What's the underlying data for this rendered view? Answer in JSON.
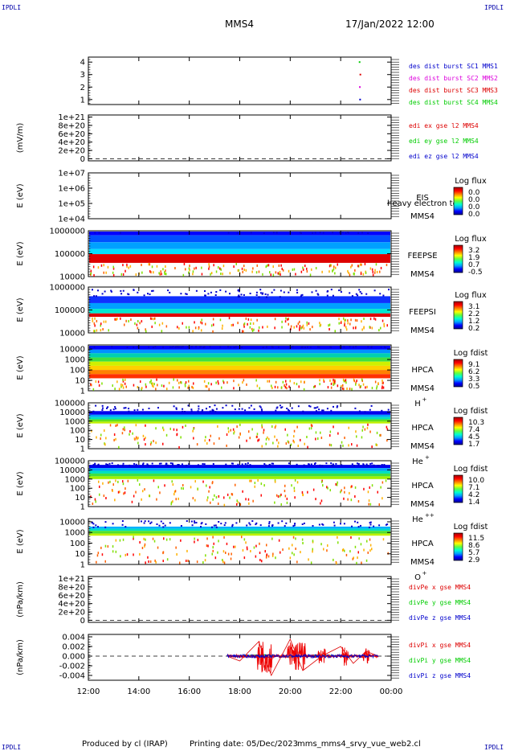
{
  "corner_label": "IPDLI",
  "header": {
    "spacecraft": "MMS4",
    "datetime": "17/Jan/2022 12:00"
  },
  "footer": {
    "produced_by": "Produced by cl (IRAP)",
    "printing_date": "Printing date: 05/Dec/2023",
    "script": "mms_mms4_srvy_vue_web2.cl"
  },
  "time_axis": {
    "tick_labels": [
      "12:00",
      "14:00",
      "16:00",
      "18:00",
      "20:00",
      "22:00",
      "00:00"
    ]
  },
  "colors": {
    "blue": "#0000cc",
    "magenta": "#dd00dd",
    "red": "#dd0000",
    "green": "#00cc00"
  },
  "panels": [
    {
      "id": "burst",
      "type": "line",
      "ylabel": "",
      "yticks": [
        "1",
        "2",
        "3",
        "4"
      ],
      "ylim": [
        0.6,
        4.4
      ],
      "legend": [
        {
          "text": "des dist burst SC1 MMS1",
          "color": "#0000cc"
        },
        {
          "text": "des dist burst SC2 MMS2",
          "color": "#dd00dd"
        },
        {
          "text": "des dist burst SC3 MMS3",
          "color": "#dd0000"
        },
        {
          "text": "des dist burst SC4 MMS4",
          "color": "#00cc00"
        }
      ],
      "points": [
        {
          "t": 22.75,
          "y": 4,
          "color": "#00cc00"
        },
        {
          "t": 22.78,
          "y": 3,
          "color": "#dd0000"
        },
        {
          "t": 22.76,
          "y": 2,
          "color": "#dd00dd"
        },
        {
          "t": 22.77,
          "y": 1,
          "color": "#0000cc"
        }
      ]
    },
    {
      "id": "edi",
      "type": "line",
      "ylabel": "(mV/m)",
      "yticks": [
        "0",
        "2e+20",
        "4e+20",
        "6e+20",
        "8e+20",
        "1e+21"
      ],
      "ylim": [
        -0.05,
        1.05
      ],
      "zero_line": true,
      "legend": [
        {
          "text": "edi ex gse l2 MMS4",
          "color": "#dd0000"
        },
        {
          "text": "edi ey gse l2 MMS4",
          "color": "#00cc00"
        },
        {
          "text": "edi ez gse l2 MMS4",
          "color": "#0000cc"
        }
      ]
    },
    {
      "id": "eis",
      "type": "spectrogram",
      "ylabel": "E (eV)",
      "yticks": [
        "1e+04",
        "1e+05",
        "1e+06",
        "1e+07"
      ],
      "ylog": [
        4,
        7
      ],
      "instrument": "EIS",
      "spacecraft": "MMS4",
      "overlay_text": "heavy electron tof",
      "colorbar_title": "Log flux",
      "colorbar_values": [
        "0.0",
        "0.0",
        "0.0",
        "0.0"
      ],
      "bands": []
    },
    {
      "id": "feepse",
      "type": "spectrogram",
      "ylabel": "E (eV)",
      "yticks": [
        "10000",
        "100000",
        "1000000"
      ],
      "ylog": [
        4,
        6
      ],
      "instrument": "FEEPSE",
      "spacecraft": "MMS4",
      "colorbar_title": "Log flux",
      "colorbar_values": [
        "3.2",
        "1.9",
        "0.7",
        "-0.5"
      ],
      "bands": [
        {
          "e_top": 6.03,
          "e_bot": 5.8,
          "color": "#0000ff"
        },
        {
          "e_top": 5.8,
          "e_bot": 5.5,
          "color": "#0050ff"
        },
        {
          "e_top": 5.5,
          "e_bot": 5.2,
          "color": "#00a0ff"
        },
        {
          "e_top": 5.2,
          "e_bot": 4.98,
          "color": "#00e0ff"
        },
        {
          "e_top": 4.98,
          "e_bot": 4.6,
          "color": "#dd0000"
        }
      ]
    },
    {
      "id": "feepsi",
      "type": "spectrogram",
      "ylabel": "E (eV)",
      "yticks": [
        "10000",
        "100000",
        "1000000"
      ],
      "ylog": [
        4,
        6
      ],
      "instrument": "FEEPSI",
      "spacecraft": "MMS4",
      "colorbar_title": "Log flux",
      "colorbar_values": [
        "3.1",
        "2.2",
        "1.2",
        "0.2"
      ],
      "bands": [
        {
          "e_top": 5.6,
          "e_bot": 5.3,
          "color": "#1030ff"
        },
        {
          "e_top": 5.3,
          "e_bot": 5.05,
          "color": "#00a0ff"
        },
        {
          "e_top": 5.05,
          "e_bot": 4.85,
          "color": "#00e8d0"
        },
        {
          "e_top": 4.85,
          "e_bot": 4.7,
          "color": "#dd0000"
        }
      ]
    },
    {
      "id": "hpca_h",
      "type": "spectrogram",
      "ylabel": "E (eV)",
      "yticks": [
        "1",
        "10",
        "100",
        "1000",
        "10000"
      ],
      "ylog": [
        0,
        4.4
      ],
      "instrument": "HPCA",
      "spacecraft": "MMS4",
      "species": "H",
      "species_charge": "+",
      "colorbar_title": "Log fdist",
      "colorbar_values": [
        "9.1",
        "6.2",
        "3.3",
        "0.5"
      ],
      "bands": [
        {
          "e_top": 4.35,
          "e_bot": 3.95,
          "color": "#0000ff"
        },
        {
          "e_top": 3.95,
          "e_bot": 3.6,
          "color": "#0090ff"
        },
        {
          "e_top": 3.6,
          "e_bot": 3.2,
          "color": "#00d0b0"
        },
        {
          "e_top": 3.2,
          "e_bot": 2.8,
          "color": "#40e040"
        },
        {
          "e_top": 2.8,
          "e_bot": 2.4,
          "color": "#d0f000"
        },
        {
          "e_top": 2.4,
          "e_bot": 2.0,
          "color": "#ffd000"
        },
        {
          "e_top": 2.0,
          "e_bot": 1.6,
          "color": "#ff8000"
        },
        {
          "e_top": 1.6,
          "e_bot": 1.2,
          "color": "#ff3000"
        }
      ]
    },
    {
      "id": "hpca_he",
      "type": "spectrogram",
      "ylabel": "E (eV)",
      "yticks": [
        "1",
        "10",
        "100",
        "1000",
        "10000",
        "100000"
      ],
      "ylog": [
        0,
        5
      ],
      "instrument": "HPCA",
      "spacecraft": "MMS4",
      "species": "He",
      "species_charge": "+",
      "colorbar_title": "Log fdist",
      "colorbar_values": [
        "10.3",
        "7.4",
        "4.5",
        "1.7"
      ],
      "bands": [
        {
          "e_top": 4.1,
          "e_bot": 3.7,
          "color": "#0000ee"
        },
        {
          "e_top": 3.7,
          "e_bot": 3.45,
          "color": "#00a0ff"
        },
        {
          "e_top": 3.45,
          "e_bot": 3.2,
          "color": "#00e0c0"
        },
        {
          "e_top": 3.2,
          "e_bot": 2.95,
          "color": "#60e020"
        },
        {
          "e_top": 2.95,
          "e_bot": 2.75,
          "color": "#c0f000"
        }
      ]
    },
    {
      "id": "hpca_hepp",
      "type": "spectrogram",
      "ylabel": "E (eV)",
      "yticks": [
        "1",
        "10",
        "100",
        "1000",
        "10000",
        "100000"
      ],
      "ylog": [
        0,
        5
      ],
      "instrument": "HPCA",
      "spacecraft": "MMS4",
      "species": "He",
      "species_charge": "++",
      "colorbar_title": "Log fdist",
      "colorbar_values": [
        "10.0",
        "7.1",
        "4.2",
        "1.4"
      ],
      "bands": [
        {
          "e_top": 4.55,
          "e_bot": 4.2,
          "color": "#0000ee"
        },
        {
          "e_top": 4.2,
          "e_bot": 3.9,
          "color": "#00a0ff"
        },
        {
          "e_top": 3.9,
          "e_bot": 3.6,
          "color": "#00e0c0"
        },
        {
          "e_top": 3.6,
          "e_bot": 3.3,
          "color": "#40e040"
        },
        {
          "e_top": 3.3,
          "e_bot": 3.0,
          "color": "#a0f000"
        }
      ]
    },
    {
      "id": "hpca_o",
      "type": "spectrogram",
      "ylabel": "E (eV)",
      "yticks": [
        "1",
        "10",
        "100",
        "1000",
        "10000"
      ],
      "ylog": [
        0,
        4.3
      ],
      "instrument": "HPCA",
      "spacecraft": "MMS4",
      "species": "O",
      "species_charge": "+",
      "colorbar_title": "Log fdist",
      "colorbar_values": [
        "11.5",
        "8.6",
        "5.7",
        "2.9"
      ],
      "bands": [
        {
          "e_top": 3.55,
          "e_bot": 3.35,
          "color": "#00b0ff"
        },
        {
          "e_top": 3.35,
          "e_bot": 3.15,
          "color": "#00e0c0"
        },
        {
          "e_top": 3.15,
          "e_bot": 2.9,
          "color": "#50e030"
        },
        {
          "e_top": 2.9,
          "e_bot": 2.7,
          "color": "#c0f000"
        }
      ]
    },
    {
      "id": "divpe",
      "type": "line",
      "ylabel": "(nPa/km)",
      "yticks": [
        "0",
        "2e+20",
        "4e+20",
        "6e+20",
        "8e+20",
        "1e+21"
      ],
      "ylim": [
        -0.05,
        1.05
      ],
      "zero_line": true,
      "legend": [
        {
          "text": "divPe x gse MMS4",
          "color": "#dd0000"
        },
        {
          "text": "divPe y gse MMS4",
          "color": "#00cc00"
        },
        {
          "text": "divPe z gse MMS4",
          "color": "#0000cc"
        }
      ]
    },
    {
      "id": "divpi",
      "type": "line",
      "ylabel": "(nPa/km)",
      "yticks": [
        "-0.004",
        "-0.002",
        "0.000",
        "0.002",
        "0.004"
      ],
      "ylim": [
        -0.005,
        0.0045
      ],
      "zero_line": true,
      "legend": [
        {
          "text": "divPi x gse MMS4",
          "color": "#dd0000"
        },
        {
          "text": "divPi y gse MMS4",
          "color": "#00cc00"
        },
        {
          "text": "divPi z gse MMS4",
          "color": "#0000cc"
        }
      ]
    }
  ],
  "chart_data": {
    "type": "line",
    "title": "MMS4",
    "xlabel": "",
    "x_range": [
      "12:00",
      "00:00"
    ],
    "series": [
      {
        "name": "divPi x gse MMS4",
        "x": [
          "17:30",
          "18:00",
          "18:45",
          "19:15",
          "20:00",
          "20:30",
          "21:15",
          "22:00",
          "22:30",
          "23:00",
          "23:30"
        ],
        "values": [
          0.0,
          -0.001,
          0.003,
          -0.004,
          0.0035,
          -0.003,
          0.0,
          0.002,
          -0.0015,
          0.001,
          0.0
        ]
      },
      {
        "name": "divPi y gse MMS4",
        "x": [
          "17:30",
          "19:00",
          "20:00",
          "21:00",
          "22:00",
          "23:30"
        ],
        "values": [
          0.0,
          0.0003,
          -0.0002,
          0.0002,
          0.0001,
          0.0
        ]
      },
      {
        "name": "divPi z gse MMS4",
        "x": [
          "17:30",
          "19:00",
          "20:00",
          "21:00",
          "22:00",
          "23:30"
        ],
        "values": [
          0.0,
          -0.0003,
          0.0002,
          -0.0002,
          0.0002,
          0.0
        ]
      }
    ]
  }
}
